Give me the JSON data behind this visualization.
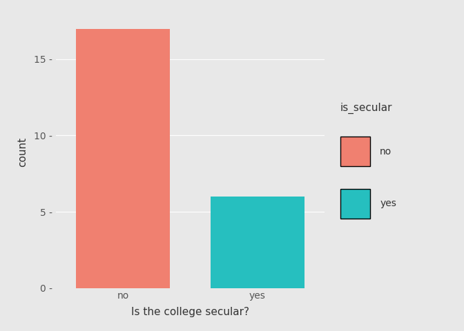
{
  "categories": [
    "no",
    "yes"
  ],
  "values": [
    17,
    6
  ],
  "bar_colors": [
    "#F08070",
    "#26BFBF"
  ],
  "xlabel": "Is the college secular?",
  "ylabel": "count",
  "ylim": [
    0,
    17.8
  ],
  "yticks": [
    0,
    5,
    10,
    15
  ],
  "panel_background": "#E8E8E8",
  "outer_background": "#E8E8E8",
  "legend_background": "#FFFFFF",
  "grid_color": "#FFFFFF",
  "legend_title": "is_secular",
  "legend_labels": [
    "no",
    "yes"
  ],
  "legend_colors": [
    "#F08070",
    "#26BFBF"
  ],
  "bar_width": 0.7,
  "axis_fontsize": 11,
  "tick_fontsize": 10,
  "legend_fontsize": 10,
  "legend_title_fontsize": 11
}
